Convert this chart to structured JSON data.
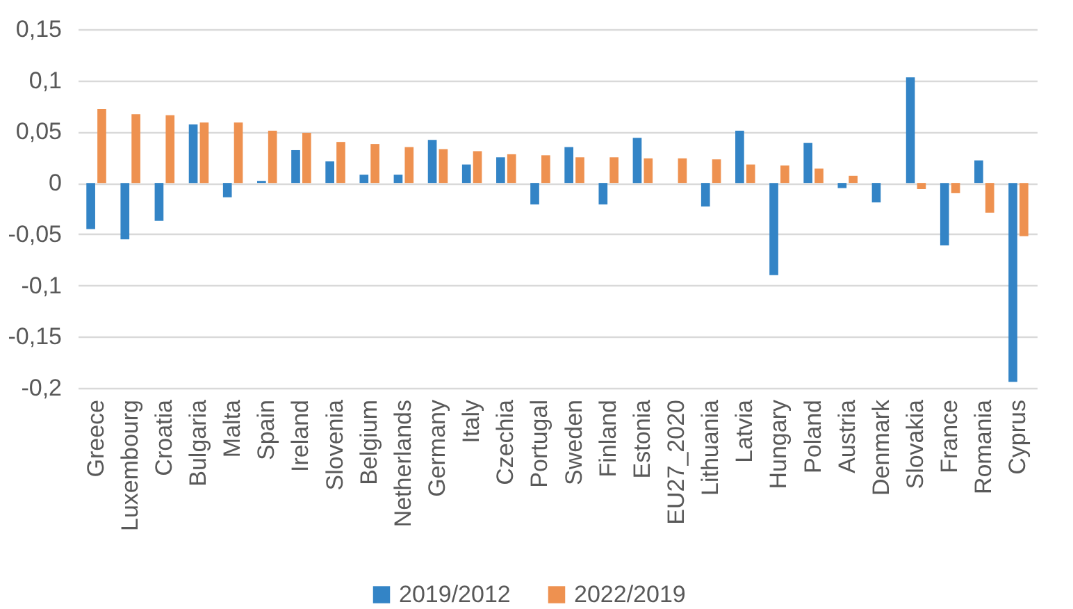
{
  "chart_data": {
    "type": "bar",
    "categories": [
      "Greece",
      "Luxembourg",
      "Croatia",
      "Bulgaria",
      "Malta",
      "Spain",
      "Ireland",
      "Slovenia",
      "Belgium",
      "Netherlands",
      "Germany",
      "Italy",
      "Czechia",
      "Portugal",
      "Sweden",
      "Finland",
      "Estonia",
      "EU27_2020",
      "Lithuania",
      "Latvia",
      "Hungary",
      "Poland",
      "Austria",
      "Denmark",
      "Slovakia",
      "France",
      "Romania",
      "Cyprus"
    ],
    "series": [
      {
        "name": "2019/2012",
        "color": "#3384c6",
        "values": [
          -0.045,
          -0.055,
          -0.037,
          0.057,
          -0.014,
          0.002,
          0.032,
          0.021,
          0.008,
          0.008,
          0.042,
          0.018,
          0.025,
          -0.021,
          0.035,
          -0.021,
          0.044,
          null,
          -0.023,
          0.051,
          -0.09,
          0.039,
          -0.005,
          -0.019,
          0.103,
          -0.061,
          0.022,
          -0.194
        ]
      },
      {
        "name": "2022/2019",
        "color": "#ee9150",
        "values": [
          0.072,
          0.067,
          0.066,
          0.059,
          0.059,
          0.051,
          0.049,
          0.04,
          0.038,
          0.035,
          0.033,
          0.031,
          0.028,
          0.027,
          0.025,
          0.025,
          0.024,
          0.024,
          0.023,
          0.018,
          0.017,
          0.014,
          0.007,
          null,
          -0.006,
          -0.01,
          -0.029,
          -0.052
        ]
      }
    ],
    "ylim": [
      -0.2,
      0.15
    ],
    "yticks": [
      {
        "value": -0.2,
        "label": "-0,2"
      },
      {
        "value": -0.15,
        "label": "-0,15"
      },
      {
        "value": -0.1,
        "label": "-0,1"
      },
      {
        "value": -0.05,
        "label": "-0,05"
      },
      {
        "value": 0,
        "label": "0"
      },
      {
        "value": 0.05,
        "label": "0,05"
      },
      {
        "value": 0.1,
        "label": "0,1"
      },
      {
        "value": 0.15,
        "label": "0,15"
      }
    ],
    "grid": "y",
    "legend": "bottom"
  }
}
